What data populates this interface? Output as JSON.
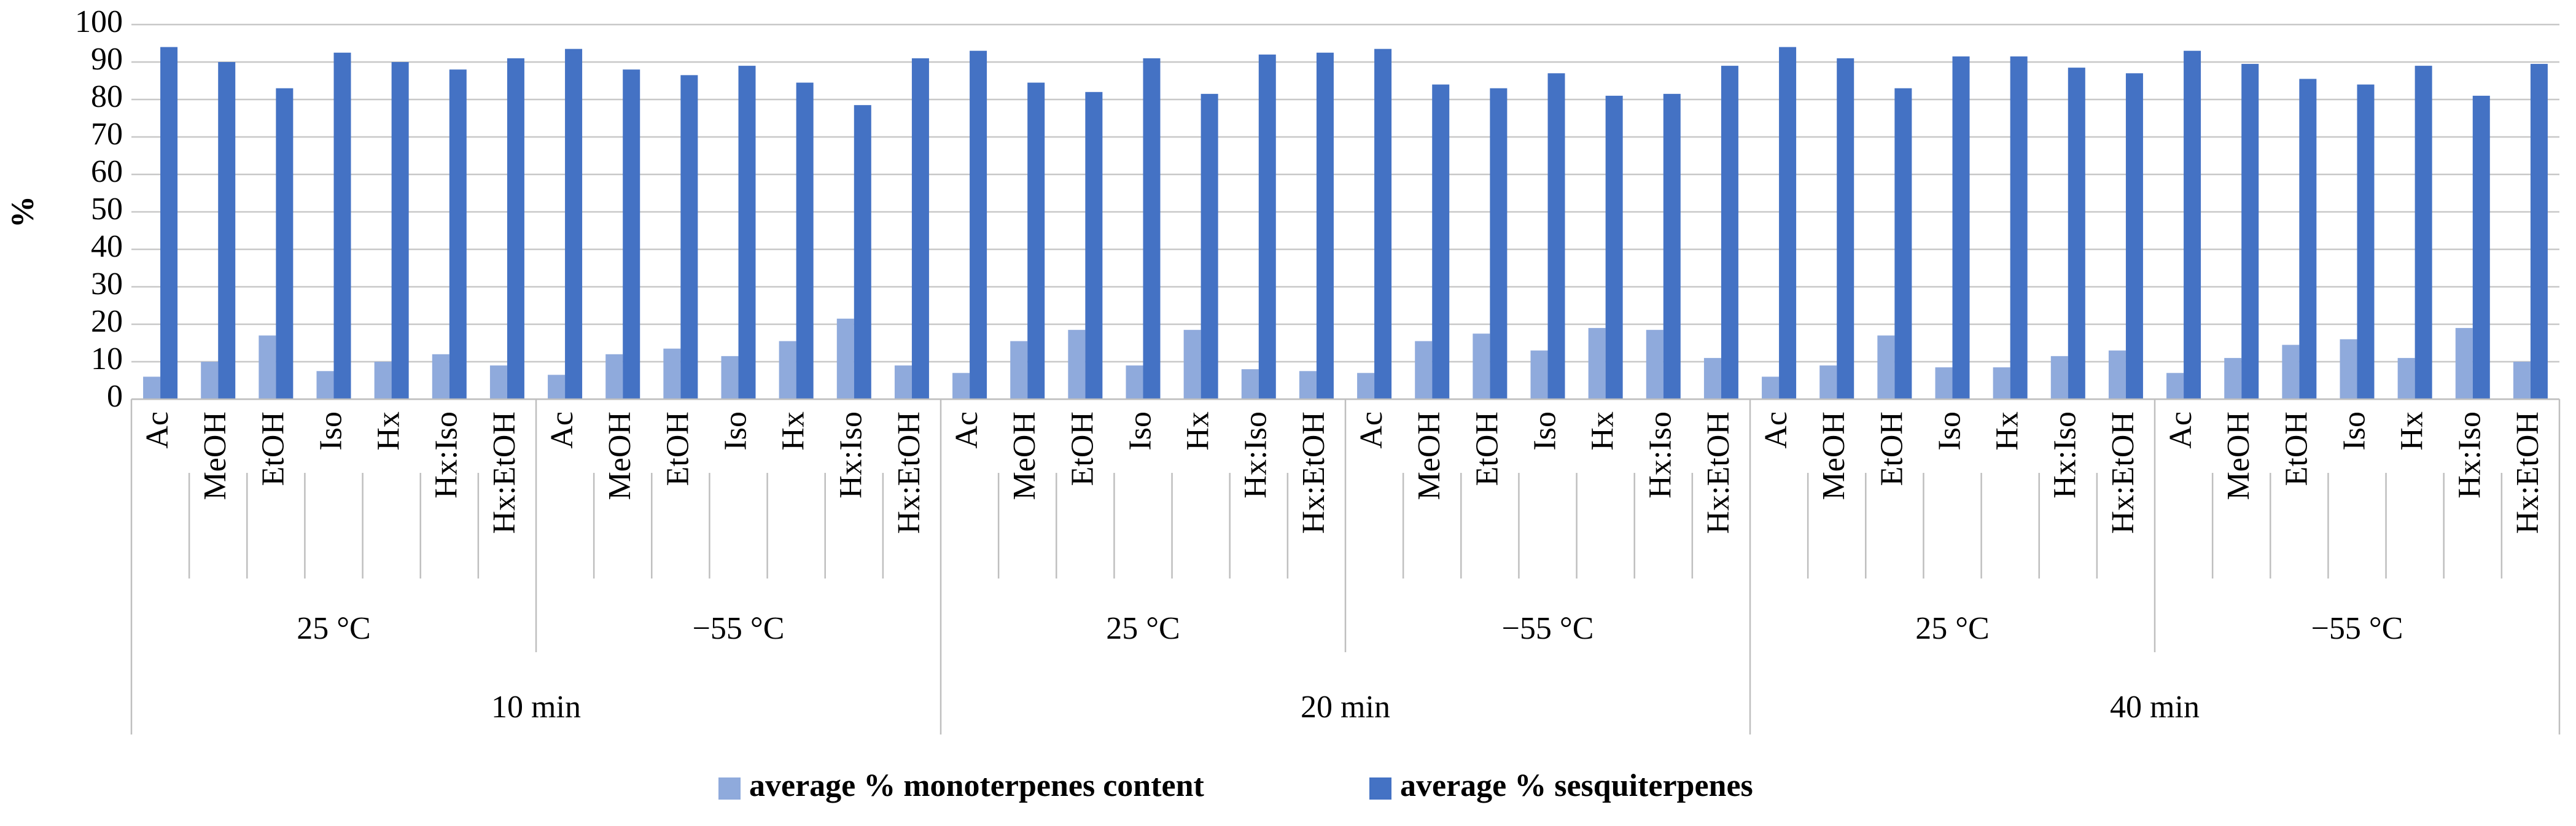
{
  "chart_data": {
    "type": "bar",
    "y_label": "%",
    "ylim": [
      0,
      100
    ],
    "yticks": [
      0,
      10,
      20,
      30,
      40,
      50,
      60,
      70,
      80,
      90,
      100
    ],
    "grid": true,
    "categories": [
      "Ac",
      "MeOH",
      "EtOH",
      "Iso",
      "Hx",
      "Hx:Iso",
      "Hx:EtOH",
      "Ac",
      "MeOH",
      "EtOH",
      "Iso",
      "Hx",
      "Hx:Iso",
      "Hx:EtOH",
      "Ac",
      "MeOH",
      "EtOH",
      "Iso",
      "Hx",
      "Hx:Iso",
      "Hx:EtOH",
      "Ac",
      "MeOH",
      "EtOH",
      "Iso",
      "Hx",
      "Hx:Iso",
      "Hx:EtOH",
      "Ac",
      "MeOH",
      "EtOH",
      "Iso",
      "Hx",
      "Hx:Iso",
      "Hx:EtOH",
      "Ac",
      "MeOH",
      "EtOH",
      "Iso",
      "Hx",
      "Hx:Iso",
      "Hx:EtOH"
    ],
    "temperature_groups": [
      "25 °C",
      "−55 °C",
      "25 °C",
      "−55 °C",
      "25 °C",
      "−55 °C"
    ],
    "time_groups": [
      "10 min",
      "20 min",
      "40 min"
    ],
    "legend": "bottom",
    "series": [
      {
        "name": "average % monoterpenes content",
        "color": "#8faadc",
        "values": [
          6,
          10,
          17,
          7.5,
          10,
          12,
          9,
          6.5,
          12,
          13.5,
          11.5,
          15.5,
          21.5,
          9,
          7,
          15.5,
          18.5,
          9,
          18.5,
          8,
          7.5,
          7,
          15.5,
          17.5,
          13,
          19,
          18.5,
          11,
          6,
          9,
          17,
          8.5,
          8.5,
          11.5,
          13,
          7,
          11,
          14.5,
          16,
          11,
          19,
          10
        ]
      },
      {
        "name": "average % sesquiterpenes",
        "color": "#4472c4",
        "values": [
          94,
          90,
          83,
          92.5,
          90,
          88,
          91,
          93.5,
          88,
          86.5,
          89,
          84.5,
          78.5,
          91,
          93,
          84.5,
          82,
          91,
          81.5,
          92,
          92.5,
          93.5,
          84,
          83,
          87,
          81,
          81.5,
          89,
          94,
          91,
          83,
          91.5,
          91.5,
          88.5,
          87,
          93,
          89.5,
          85.5,
          84,
          89,
          81,
          89.5
        ]
      }
    ]
  }
}
